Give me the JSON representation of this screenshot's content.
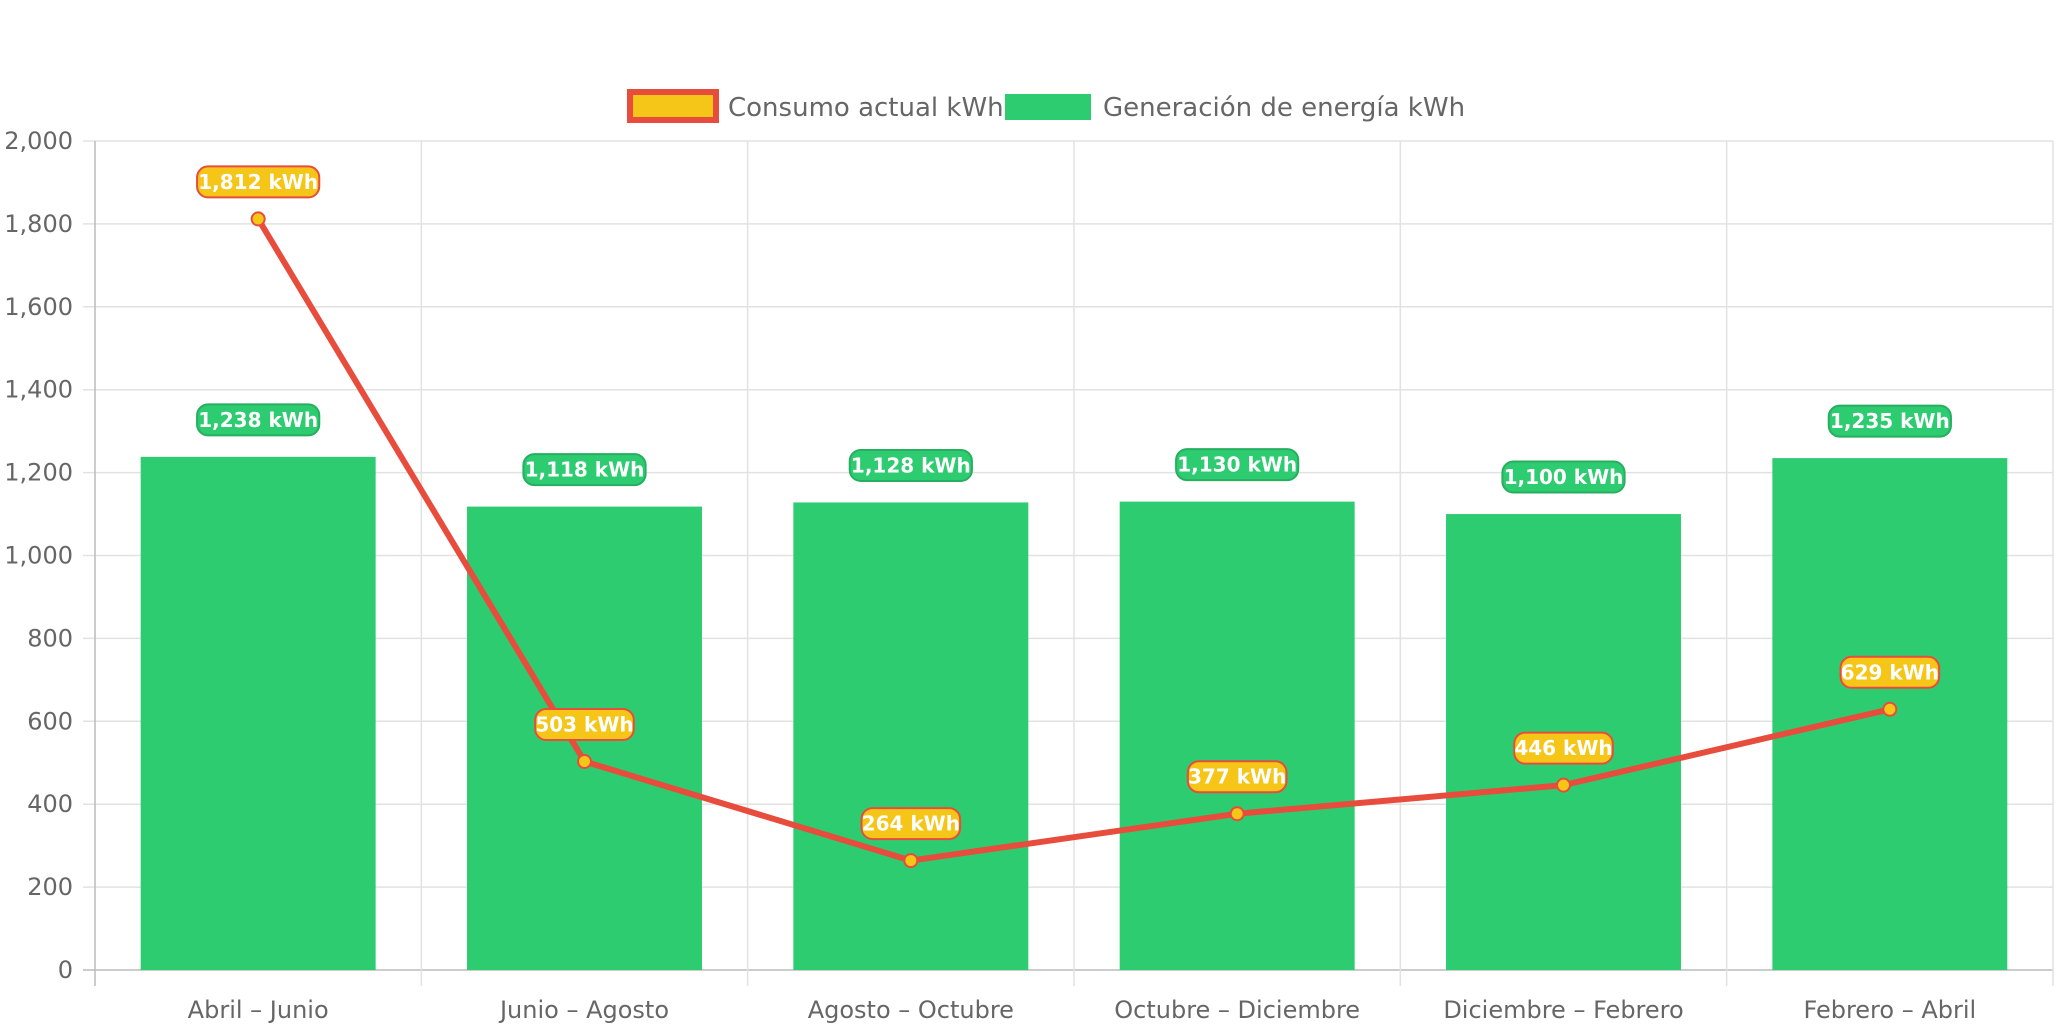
{
  "chart_data": {
    "type": "bar",
    "categories": [
      "Abril – Junio",
      "Junio – Agosto",
      "Agosto – Octubre",
      "Octubre – Diciembre",
      "Diciembre – Febrero",
      "Febrero – Abril"
    ],
    "series": [
      {
        "name": "Consumo actual kWh",
        "type": "line",
        "values": [
          1812,
          503,
          264,
          377,
          446,
          629
        ],
        "labels": [
          "1,812 kWh",
          "503 kWh",
          "264 kWh",
          "377 kWh",
          "446 kWh",
          "629 kWh"
        ],
        "color": "#e74c3c",
        "fill": "#f5c518"
      },
      {
        "name": "Generación de energía kWh",
        "type": "bar",
        "values": [
          1238,
          1118,
          1128,
          1130,
          1100,
          1235
        ],
        "labels": [
          "1,238 kWh",
          "1,118 kWh",
          "1,128 kWh",
          "1,130 kWh",
          "1,100 kWh",
          "1,235 kWh"
        ],
        "color": "#2ecc71",
        "border": "#27ae60"
      }
    ],
    "title": "",
    "xlabel": "",
    "ylabel": "",
    "ylim": [
      0,
      2000
    ],
    "yticks": [
      0,
      200,
      400,
      600,
      800,
      1000,
      1200,
      1400,
      1600,
      1800,
      2000
    ],
    "ytick_labels": [
      "0",
      "200",
      "400",
      "600",
      "800",
      "1,000",
      "1,200",
      "1,400",
      "1,600",
      "1,800",
      "2,000"
    ],
    "grid": true,
    "legend": "top-center"
  }
}
